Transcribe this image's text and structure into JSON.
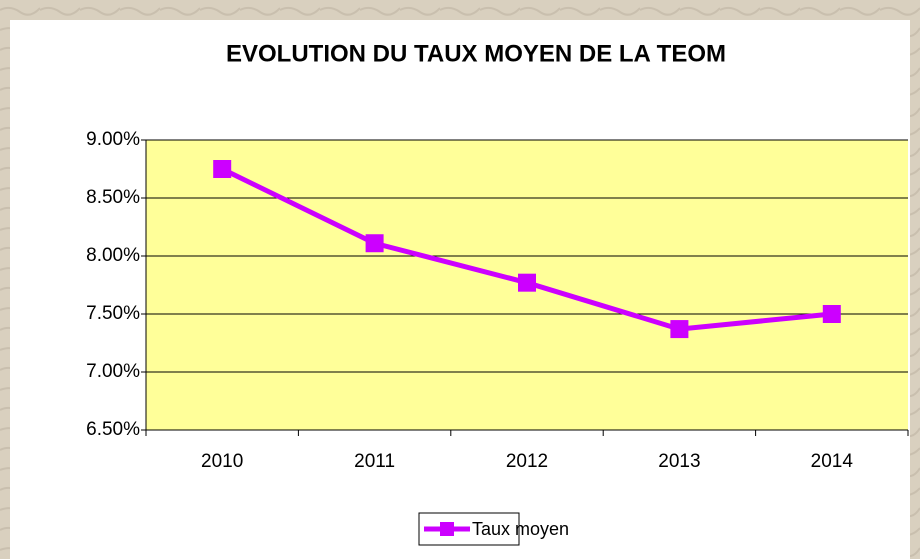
{
  "chart_data": {
    "type": "line",
    "title": "EVOLUTION DU TAUX MOYEN DE LA TEOM",
    "categories": [
      "2010",
      "2011",
      "2012",
      "2013",
      "2014"
    ],
    "series": [
      {
        "name": "Taux moyen",
        "color": "#cc00ff",
        "values": [
          8.75,
          8.11,
          7.77,
          7.37,
          7.5
        ]
      }
    ],
    "ylim": [
      6.5,
      9.0
    ],
    "yticks": [
      {
        "value": 6.5,
        "label": "6.50%"
      },
      {
        "value": 7.0,
        "label": "7.00%"
      },
      {
        "value": 7.5,
        "label": "7.50%"
      },
      {
        "value": 8.0,
        "label": "8.00%"
      },
      {
        "value": 8.5,
        "label": "8.50%"
      },
      {
        "value": 9.0,
        "label": "9.00%"
      }
    ],
    "grid": true,
    "legend": "bottom",
    "plot_background": "#ffff99"
  }
}
